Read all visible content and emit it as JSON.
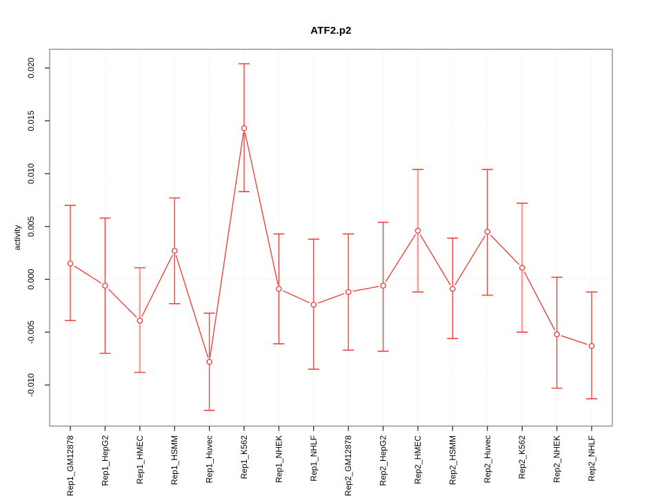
{
  "window": {
    "background": "#ffffff"
  },
  "colors": {
    "series_red": "#ef413d",
    "bar_pink": "#f7a0a0",
    "grid": "#dedede",
    "plot_border": "#878787",
    "tick": "#2a2a2a",
    "text": "#000000",
    "point_fill": "#ffffff"
  },
  "chart_data": {
    "type": "line",
    "title": "ATF2.p2",
    "xlabel": "",
    "ylabel": "activity",
    "legend_position": "none",
    "grid": "dotted vertical gridline at every category; dotted horizontal line at y=0",
    "ylim": [
      -0.0139,
      0.0217
    ],
    "yticks": [
      -0.01,
      -0.005,
      0.0,
      0.005,
      0.01,
      0.015,
      0.02
    ],
    "ytick_labels": [
      "-0.010",
      "-0.005",
      "0.000",
      "0.005",
      "0.010",
      "0.015",
      "0.020"
    ],
    "categories": [
      "Rep1_GM12878",
      "Rep1_HepG2",
      "Rep1_HMEC",
      "Rep1_HSMM",
      "Rep1_Huvec",
      "Rep1_K562",
      "Rep1_NHEK",
      "Rep1_NHLF",
      "Rep2_GM12878",
      "Rep2_HepG2",
      "Rep2_HMEC",
      "Rep2_HSMM",
      "Rep2_Huvec",
      "Rep2_K562",
      "Rep2_NHEK",
      "Rep2_NHLF"
    ],
    "series": [
      {
        "name": "activity mean with error bars",
        "marker": "open-circle",
        "points": [
          {
            "label": "Rep1_GM12878",
            "mean": 0.0015,
            "lo": -0.0039,
            "hi": 0.007,
            "bar": "red"
          },
          {
            "label": "Rep1_HepG2",
            "mean": -0.0006,
            "lo": -0.007,
            "hi": 0.0058,
            "bar": "red"
          },
          {
            "label": "Rep1_HMEC",
            "mean": -0.0039,
            "lo": -0.0088,
            "hi": 0.0011,
            "bar": "pink"
          },
          {
            "label": "Rep1_HSMM",
            "mean": 0.0027,
            "lo": -0.0023,
            "hi": 0.0077,
            "bar": "red"
          },
          {
            "label": "Rep1_Huvec",
            "mean": -0.0078,
            "lo": -0.0124,
            "hi": -0.0032,
            "bar": "red"
          },
          {
            "label": "Rep1_K562",
            "mean": 0.0143,
            "lo": 0.0083,
            "hi": 0.0204,
            "bar": "red"
          },
          {
            "label": "Rep1_NHEK",
            "mean": -0.0009,
            "lo": -0.0061,
            "hi": 0.0043,
            "bar": "red"
          },
          {
            "label": "Rep1_NHLF",
            "mean": -0.0024,
            "lo": -0.0085,
            "hi": 0.0038,
            "bar": "red"
          },
          {
            "label": "Rep2_GM12878",
            "mean": -0.0012,
            "lo": -0.0067,
            "hi": 0.0043,
            "bar": "red"
          },
          {
            "label": "Rep2_HepG2",
            "mean": -0.0006,
            "lo": -0.0068,
            "hi": 0.0054,
            "bar": "red"
          },
          {
            "label": "Rep2_HMEC",
            "mean": 0.0046,
            "lo": -0.0012,
            "hi": 0.0104,
            "bar": "pink"
          },
          {
            "label": "Rep2_HSMM",
            "mean": -0.0009,
            "lo": -0.0056,
            "hi": 0.0039,
            "bar": "red"
          },
          {
            "label": "Rep2_Huvec",
            "mean": 0.0045,
            "lo": -0.0015,
            "hi": 0.0104,
            "bar": "red"
          },
          {
            "label": "Rep2_K562",
            "mean": 0.0011,
            "lo": -0.005,
            "hi": 0.0072,
            "bar": "pink"
          },
          {
            "label": "Rep2_NHEK",
            "mean": -0.0052,
            "lo": -0.0103,
            "hi": 0.0002,
            "bar": "red"
          },
          {
            "label": "Rep2_NHLF",
            "mean": -0.0063,
            "lo": -0.0113,
            "hi": -0.0012,
            "bar": "red"
          }
        ]
      }
    ]
  }
}
